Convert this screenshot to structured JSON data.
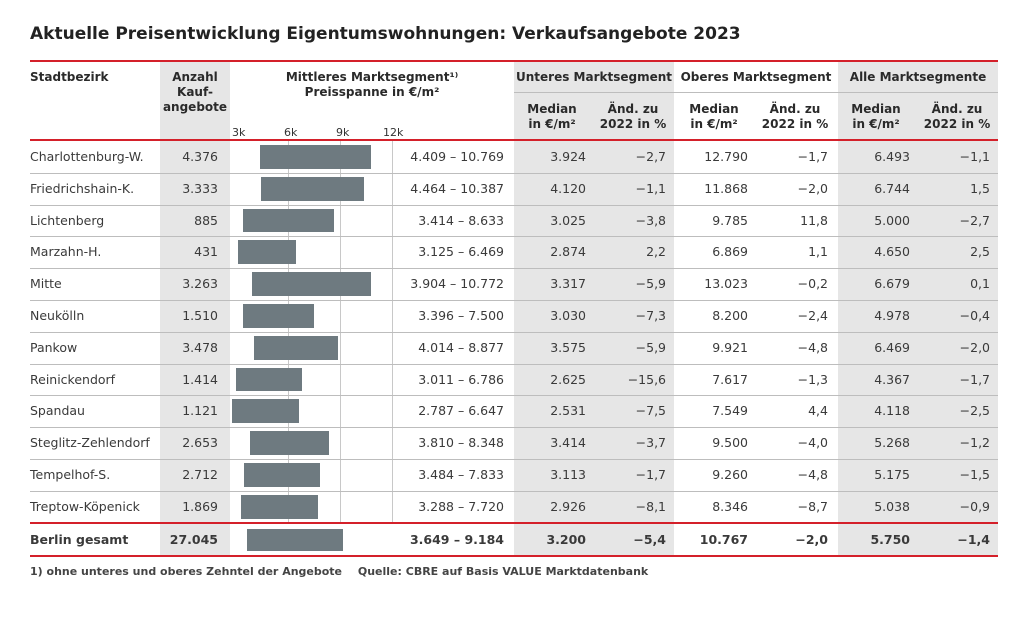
{
  "title": "Aktuelle Preisentwicklung Eigentumswohnungen: Verkaufsangebote 2023",
  "headers": {
    "district": "Stadtbezirk",
    "count_l1": "Anzahl",
    "count_l2": "Kauf-",
    "count_l3": "angebote",
    "mid_l1": "Mittleres Marktsegment¹⁾",
    "mid_l2": "Preisspanne in €/m²",
    "low": "Unteres Marktsegment",
    "high": "Oberes Marktsegment",
    "all": "Alle Marktsegmente",
    "median_l1": "Median",
    "median_l2": "in €/m²",
    "change_l1": "Änd. zu",
    "change_l2": "2022 in %"
  },
  "ticks": [
    "3k",
    "6k",
    "9k",
    "12k"
  ],
  "chart_data": {
    "type": "table",
    "title": "Aktuelle Preisentwicklung Eigentumswohnungen: Verkaufsangebote 2023",
    "bar_axis": {
      "min": 3000,
      "max": 12000,
      "unit": "€/m²"
    },
    "rows": [
      {
        "district": "Charlottenburg-W.",
        "count": "4.376",
        "min": 4409,
        "max": 10769,
        "range": "4.409 – 10.769",
        "low_median": "3.924",
        "low_change": "−2,7",
        "high_median": "12.790",
        "high_change": "−1,7",
        "all_median": "6.493",
        "all_change": "−1,1"
      },
      {
        "district": "Friedrichshain-K.",
        "count": "3.333",
        "min": 4464,
        "max": 10387,
        "range": "4.464 – 10.387",
        "low_median": "4.120",
        "low_change": "−1,1",
        "high_median": "11.868",
        "high_change": "−2,0",
        "all_median": "6.744",
        "all_change": "1,5"
      },
      {
        "district": "Lichtenberg",
        "count": "885",
        "min": 3414,
        "max": 8633,
        "range": "3.414 – 8.633",
        "low_median": "3.025",
        "low_change": "−3,8",
        "high_median": "9.785",
        "high_change": "11,8",
        "all_median": "5.000",
        "all_change": "−2,7"
      },
      {
        "district": "Marzahn-H.",
        "count": "431",
        "min": 3125,
        "max": 6469,
        "range": "3.125 – 6.469",
        "low_median": "2.874",
        "low_change": "2,2",
        "high_median": "6.869",
        "high_change": "1,1",
        "all_median": "4.650",
        "all_change": "2,5"
      },
      {
        "district": "Mitte",
        "count": "3.263",
        "min": 3904,
        "max": 10772,
        "range": "3.904 – 10.772",
        "low_median": "3.317",
        "low_change": "−5,9",
        "high_median": "13.023",
        "high_change": "−0,2",
        "all_median": "6.679",
        "all_change": "0,1"
      },
      {
        "district": "Neukölln",
        "count": "1.510",
        "min": 3396,
        "max": 7500,
        "range": "3.396 – 7.500",
        "low_median": "3.030",
        "low_change": "−7,3",
        "high_median": "8.200",
        "high_change": "−2,4",
        "all_median": "4.978",
        "all_change": "−0,4"
      },
      {
        "district": "Pankow",
        "count": "3.478",
        "min": 4014,
        "max": 8877,
        "range": "4.014 – 8.877",
        "low_median": "3.575",
        "low_change": "−5,9",
        "high_median": "9.921",
        "high_change": "−4,8",
        "all_median": "6.469",
        "all_change": "−2,0"
      },
      {
        "district": "Reinickendorf",
        "count": "1.414",
        "min": 3011,
        "max": 6786,
        "range": "3.011 – 6.786",
        "low_median": "2.625",
        "low_change": "−15,6",
        "high_median": "7.617",
        "high_change": "−1,3",
        "all_median": "4.367",
        "all_change": "−1,7"
      },
      {
        "district": "Spandau",
        "count": "1.121",
        "min": 2787,
        "max": 6647,
        "range": "2.787 – 6.647",
        "low_median": "2.531",
        "low_change": "−7,5",
        "high_median": "7.549",
        "high_change": "4,4",
        "all_median": "4.118",
        "all_change": "−2,5"
      },
      {
        "district": "Steglitz-Zehlendorf",
        "count": "2.653",
        "min": 3810,
        "max": 8348,
        "range": "3.810 – 8.348",
        "low_median": "3.414",
        "low_change": "−3,7",
        "high_median": "9.500",
        "high_change": "−4,0",
        "all_median": "5.268",
        "all_change": "−1,2"
      },
      {
        "district": "Tempelhof-S.",
        "count": "2.712",
        "min": 3484,
        "max": 7833,
        "range": "3.484 – 7.833",
        "low_median": "3.113",
        "low_change": "−1,7",
        "high_median": "9.260",
        "high_change": "−4,8",
        "all_median": "5.175",
        "all_change": "−1,5"
      },
      {
        "district": "Treptow-Köpenick",
        "count": "1.869",
        "min": 3288,
        "max": 7720,
        "range": "3.288 – 7.720",
        "low_median": "2.926",
        "low_change": "−8,1",
        "high_median": "8.346",
        "high_change": "−8,7",
        "all_median": "5.038",
        "all_change": "−0,9"
      }
    ],
    "total": {
      "district": "Berlin gesamt",
      "count": "27.045",
      "min": 3649,
      "max": 9184,
      "range": "3.649 – 9.184",
      "low_median": "3.200",
      "low_change": "−5,4",
      "high_median": "10.767",
      "high_change": "−2,0",
      "all_median": "5.750",
      "all_change": "−1,4"
    }
  },
  "footnote": "1) ohne unteres und oberes Zehntel der Angebote",
  "source": "Quelle: CBRE auf Basis VALUE Marktdatenbank",
  "colors": {
    "accent": "#d4202a",
    "bar": "#6e7a80",
    "column_shade": "#e6e6e6"
  }
}
